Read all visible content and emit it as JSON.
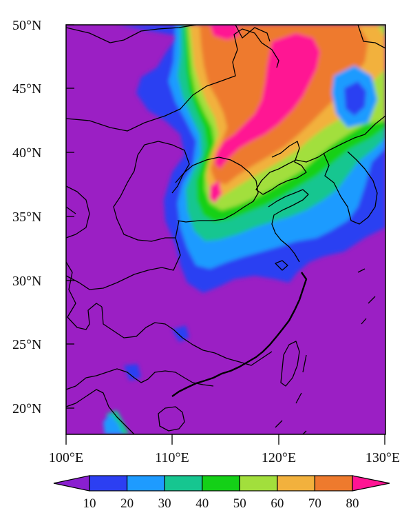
{
  "map": {
    "lat_labels": [
      "50°N",
      "45°N",
      "40°N",
      "35°N",
      "30°N",
      "25°N",
      "20°N"
    ],
    "lon_labels": [
      "100°E",
      "110°E",
      "120°E",
      "130°E"
    ],
    "extent": {
      "lon": [
        96,
        130
      ],
      "lat": [
        18,
        50
      ]
    },
    "land_background_color": "#9b1fc4"
  },
  "colorbar": {
    "tick_labels": [
      "10",
      "20",
      "30",
      "40",
      "50",
      "60",
      "70",
      "80"
    ],
    "colors": [
      "#8a1fd0",
      "#2c3ff2",
      "#1e9bff",
      "#16c690",
      "#14d017",
      "#a2df3c",
      "#f2b13d",
      "#ee7a2d",
      "#ff1493"
    ],
    "extend": "both"
  }
}
